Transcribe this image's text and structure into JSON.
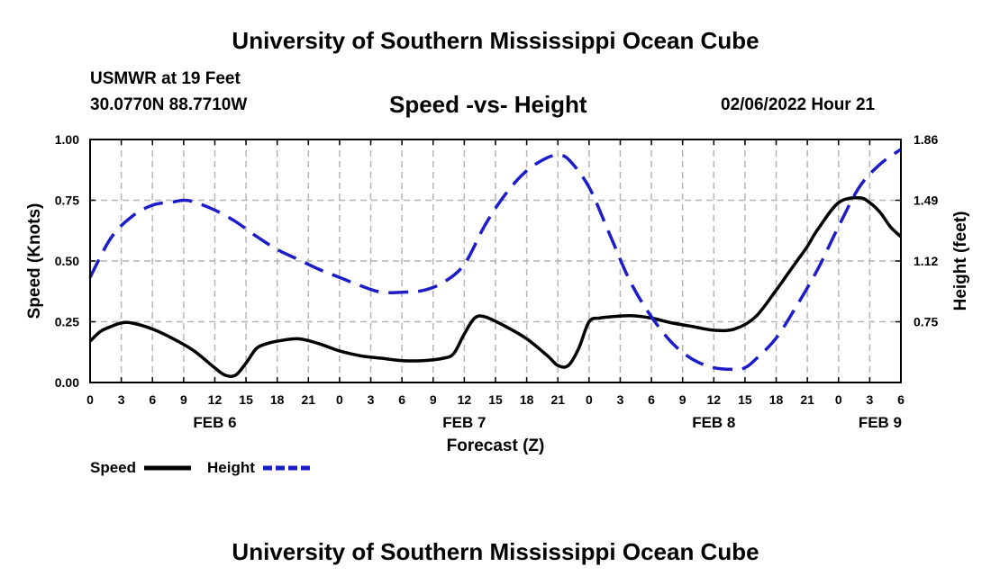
{
  "header": {
    "title": "University of Southern Mississippi Ocean Cube",
    "station": "USMWR at 19 Feet",
    "coordinates": "30.0770N  88.7710W",
    "datetime": "02/06/2022 Hour 21"
  },
  "footer": {
    "title": "University of Southern Mississippi Ocean Cube"
  },
  "chart_data": {
    "type": "line",
    "title": "Speed -vs- Height",
    "xlabel": "Forecast (Z)",
    "ylabel": "Speed (Knots)",
    "y2label": "Height (feet)",
    "ylim": [
      0,
      1.0
    ],
    "y2lim": [
      0.38,
      1.86
    ],
    "xlim": [
      0,
      78
    ],
    "x_tick_values": [
      0,
      3,
      6,
      9,
      12,
      15,
      18,
      21,
      24,
      27,
      30,
      33,
      36,
      39,
      42,
      45,
      48,
      51,
      54,
      57,
      60,
      63,
      66,
      69,
      72,
      75,
      78
    ],
    "x_tick_labels": [
      "0",
      "3",
      "6",
      "9",
      "12",
      "15",
      "18",
      "21",
      "0",
      "3",
      "6",
      "9",
      "12",
      "15",
      "18",
      "21",
      "0",
      "3",
      "6",
      "9",
      "12",
      "15",
      "18",
      "21",
      "0",
      "3",
      "6"
    ],
    "date_labels": [
      {
        "x": 12,
        "label": "FEB 6"
      },
      {
        "x": 36,
        "label": "FEB 7"
      },
      {
        "x": 60,
        "label": "FEB 8"
      },
      {
        "x": 76,
        "label": "FEB 9"
      }
    ],
    "y_tick_values": [
      0,
      0.25,
      0.5,
      0.75,
      1.0
    ],
    "y_tick_labels": [
      "0.00",
      "0.25",
      "0.50",
      "0.75",
      "1.00"
    ],
    "y2_tick_values": [
      0.75,
      1.12,
      1.49,
      1.86
    ],
    "y2_tick_labels": [
      "0.75",
      "1.12",
      "1.49",
      "1.86"
    ],
    "grid": true,
    "legend": "bottom-left",
    "series": [
      {
        "name": "Speed",
        "axis": "left",
        "color": "#000000",
        "dash": "solid",
        "x": [
          0,
          1,
          2,
          3,
          4,
          6,
          8,
          10,
          12,
          13,
          14,
          15,
          16,
          17,
          18,
          20,
          22,
          24,
          26,
          28,
          30,
          32,
          34,
          35,
          36,
          37,
          38,
          40,
          42,
          44,
          45,
          46,
          47,
          48,
          49,
          50,
          52,
          54,
          56,
          58,
          60,
          62,
          64,
          66,
          67,
          68,
          69,
          70,
          72,
          74,
          75,
          76,
          77,
          78
        ],
        "values": [
          0.17,
          0.21,
          0.23,
          0.245,
          0.245,
          0.22,
          0.18,
          0.13,
          0.06,
          0.03,
          0.03,
          0.08,
          0.14,
          0.16,
          0.17,
          0.18,
          0.16,
          0.13,
          0.11,
          0.1,
          0.09,
          0.09,
          0.1,
          0.12,
          0.2,
          0.265,
          0.27,
          0.23,
          0.18,
          0.11,
          0.07,
          0.07,
          0.14,
          0.25,
          0.265,
          0.27,
          0.275,
          0.265,
          0.245,
          0.23,
          0.215,
          0.22,
          0.27,
          0.38,
          0.44,
          0.5,
          0.56,
          0.63,
          0.74,
          0.76,
          0.74,
          0.7,
          0.64,
          0.6
        ]
      },
      {
        "name": "Height",
        "axis": "right",
        "color": "#1c1cc8",
        "dash": "dashed",
        "x": [
          0,
          2,
          4,
          6,
          8,
          9,
          10,
          12,
          14,
          16,
          18,
          20,
          22,
          24,
          26,
          28,
          30,
          32,
          34,
          36,
          38,
          40,
          42,
          44,
          45,
          46,
          48,
          50,
          52,
          54,
          56,
          58,
          60,
          62,
          63,
          64,
          66,
          68,
          70,
          72,
          74,
          76,
          78
        ],
        "values": [
          1.02,
          1.26,
          1.39,
          1.46,
          1.48,
          1.49,
          1.48,
          1.43,
          1.36,
          1.27,
          1.19,
          1.13,
          1.07,
          1.02,
          0.97,
          0.93,
          0.93,
          0.94,
          0.99,
          1.1,
          1.34,
          1.53,
          1.67,
          1.75,
          1.76,
          1.74,
          1.57,
          1.28,
          0.99,
          0.78,
          0.62,
          0.52,
          0.47,
          0.46,
          0.47,
          0.52,
          0.65,
          0.85,
          1.07,
          1.33,
          1.57,
          1.71,
          1.8
        ]
      }
    ]
  }
}
